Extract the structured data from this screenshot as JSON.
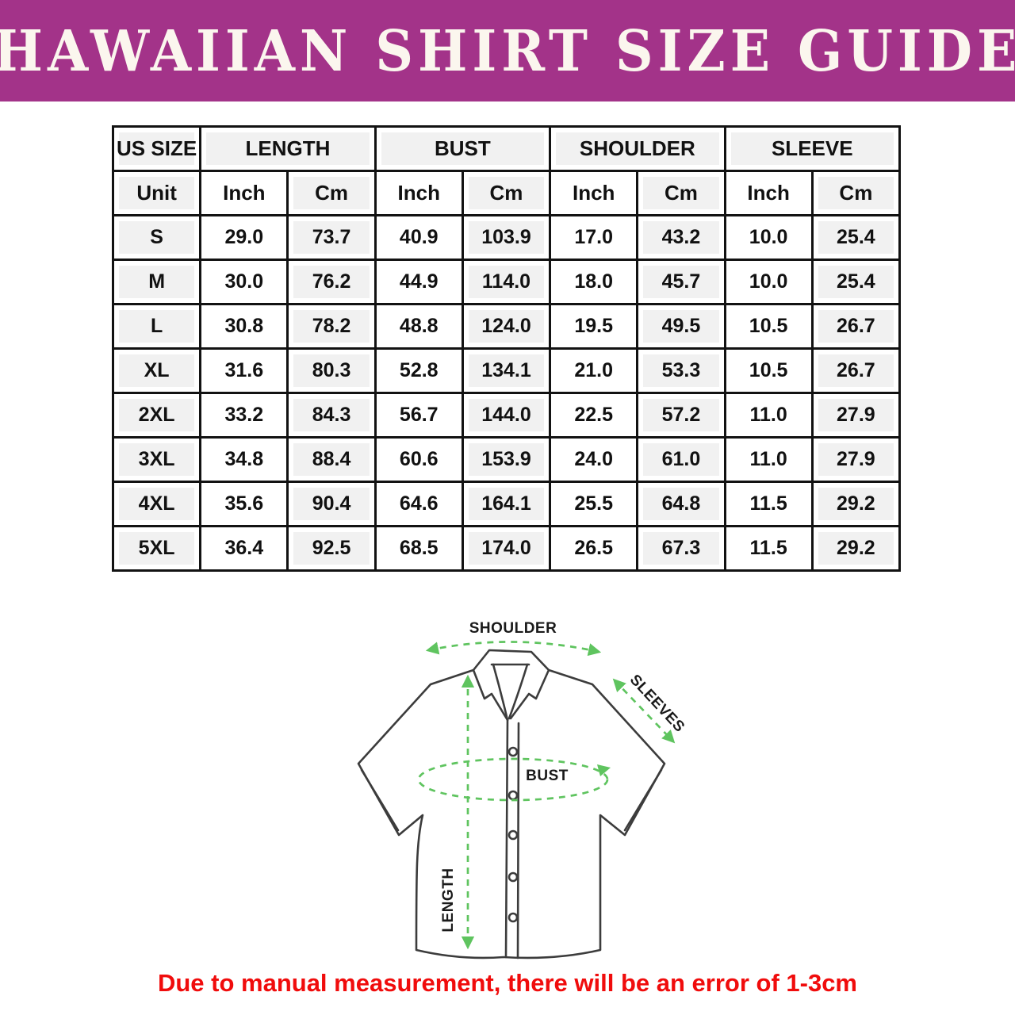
{
  "title": "HAWAIIAN SHIRT SIZE GUIDE",
  "colors": {
    "banner-bg": "#A33389",
    "banner-text": "#FBF6EE",
    "table-border": "#121212",
    "cell-shade": "#F1F1F1",
    "text-dark": "#111111",
    "diagram-green": "#5FC45F",
    "shirt-line": "#3C3C3C",
    "footer-red": "#F00C0C"
  },
  "table": {
    "group_headers": [
      "US SIZE",
      "LENGTH",
      "BUST",
      "SHOULDER",
      "SLEEVE"
    ],
    "unit_row": [
      "Unit",
      "Inch",
      "Cm",
      "Inch",
      "Cm",
      "Inch",
      "Cm",
      "Inch",
      "Cm"
    ],
    "rows": [
      {
        "size": "S",
        "values": [
          "29.0",
          "73.7",
          "40.9",
          "103.9",
          "17.0",
          "43.2",
          "10.0",
          "25.4"
        ]
      },
      {
        "size": "M",
        "values": [
          "30.0",
          "76.2",
          "44.9",
          "114.0",
          "18.0",
          "45.7",
          "10.0",
          "25.4"
        ]
      },
      {
        "size": "L",
        "values": [
          "30.8",
          "78.2",
          "48.8",
          "124.0",
          "19.5",
          "49.5",
          "10.5",
          "26.7"
        ]
      },
      {
        "size": "XL",
        "values": [
          "31.6",
          "80.3",
          "52.8",
          "134.1",
          "21.0",
          "53.3",
          "10.5",
          "26.7"
        ]
      },
      {
        "size": "2XL",
        "values": [
          "33.2",
          "84.3",
          "56.7",
          "144.0",
          "22.5",
          "57.2",
          "11.0",
          "27.9"
        ]
      },
      {
        "size": "3XL",
        "values": [
          "34.8",
          "88.4",
          "60.6",
          "153.9",
          "24.0",
          "61.0",
          "11.0",
          "27.9"
        ]
      },
      {
        "size": "4XL",
        "values": [
          "35.6",
          "90.4",
          "64.6",
          "164.1",
          "25.5",
          "64.8",
          "11.5",
          "29.2"
        ]
      },
      {
        "size": "5XL",
        "values": [
          "36.4",
          "92.5",
          "68.5",
          "174.0",
          "26.5",
          "67.3",
          "11.5",
          "29.2"
        ]
      }
    ]
  },
  "diagram": {
    "labels": {
      "shoulder": "SHOULDER",
      "sleeves": "SLEEVES",
      "bust": "BUST",
      "length": "LENGTH"
    }
  },
  "footer": {
    "note": "Due to manual measurement, there will be an error of 1-3cm"
  }
}
